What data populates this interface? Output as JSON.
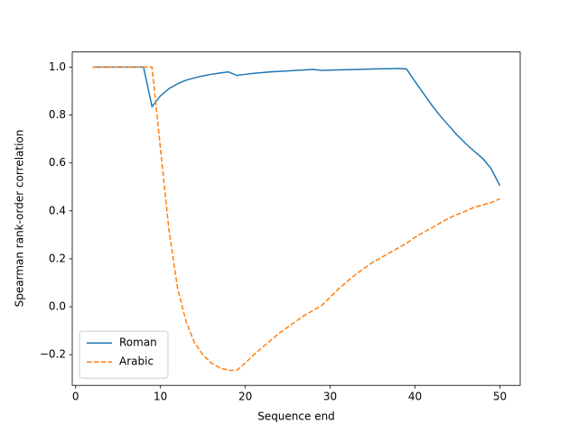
{
  "chart_data": {
    "type": "line",
    "xlabel": "Sequence end",
    "ylabel": "Spearman rank-order correlation",
    "x": [
      2,
      3,
      4,
      5,
      6,
      7,
      8,
      9,
      10,
      11,
      12,
      13,
      14,
      15,
      16,
      17,
      18,
      19,
      20,
      21,
      22,
      23,
      24,
      25,
      26,
      27,
      28,
      29,
      30,
      31,
      32,
      33,
      34,
      35,
      36,
      37,
      38,
      39,
      40,
      41,
      42,
      43,
      44,
      45,
      46,
      47,
      48,
      49,
      50
    ],
    "series": [
      {
        "name": "Roman",
        "color": "#1f77b4",
        "linestyle": "solid",
        "values": [
          1.0,
          1.0,
          1.0,
          1.0,
          1.0,
          1.0,
          1.0,
          0.835,
          0.88,
          0.91,
          0.93,
          0.945,
          0.955,
          0.963,
          0.97,
          0.975,
          0.98,
          0.965,
          0.97,
          0.974,
          0.977,
          0.98,
          0.982,
          0.984,
          0.986,
          0.988,
          0.99,
          0.986,
          0.987,
          0.988,
          0.989,
          0.99,
          0.991,
          0.992,
          0.993,
          0.993,
          0.994,
          0.992,
          0.94,
          0.89,
          0.84,
          0.795,
          0.755,
          0.715,
          0.68,
          0.648,
          0.618,
          0.575,
          0.505
        ]
      },
      {
        "name": "Arabic",
        "color": "#ff7f0e",
        "linestyle": "dashed",
        "values": [
          1.0,
          1.0,
          1.0,
          1.0,
          1.0,
          1.0,
          1.0,
          1.0,
          0.66,
          0.32,
          0.08,
          -0.06,
          -0.15,
          -0.2,
          -0.235,
          -0.255,
          -0.265,
          -0.265,
          -0.235,
          -0.2,
          -0.17,
          -0.14,
          -0.11,
          -0.085,
          -0.06,
          -0.035,
          -0.015,
          0.005,
          0.04,
          0.075,
          0.105,
          0.135,
          0.16,
          0.185,
          0.205,
          0.225,
          0.245,
          0.265,
          0.29,
          0.31,
          0.33,
          0.35,
          0.37,
          0.385,
          0.4,
          0.415,
          0.425,
          0.435,
          0.45
        ]
      }
    ],
    "xlim": [
      -0.4,
      52.4
    ],
    "xticks": [
      0,
      10,
      20,
      30,
      40,
      50
    ],
    "ylim": [
      -0.328,
      1.063
    ],
    "yticks": [
      {
        "value": -0.2,
        "label": "−0.2"
      },
      {
        "value": 0,
        "label": "0.0"
      },
      0.2,
      0.4,
      0.6,
      0.8,
      {
        "value": 1,
        "label": "1.0"
      }
    ],
    "legend": "lower left",
    "grid": false
  }
}
